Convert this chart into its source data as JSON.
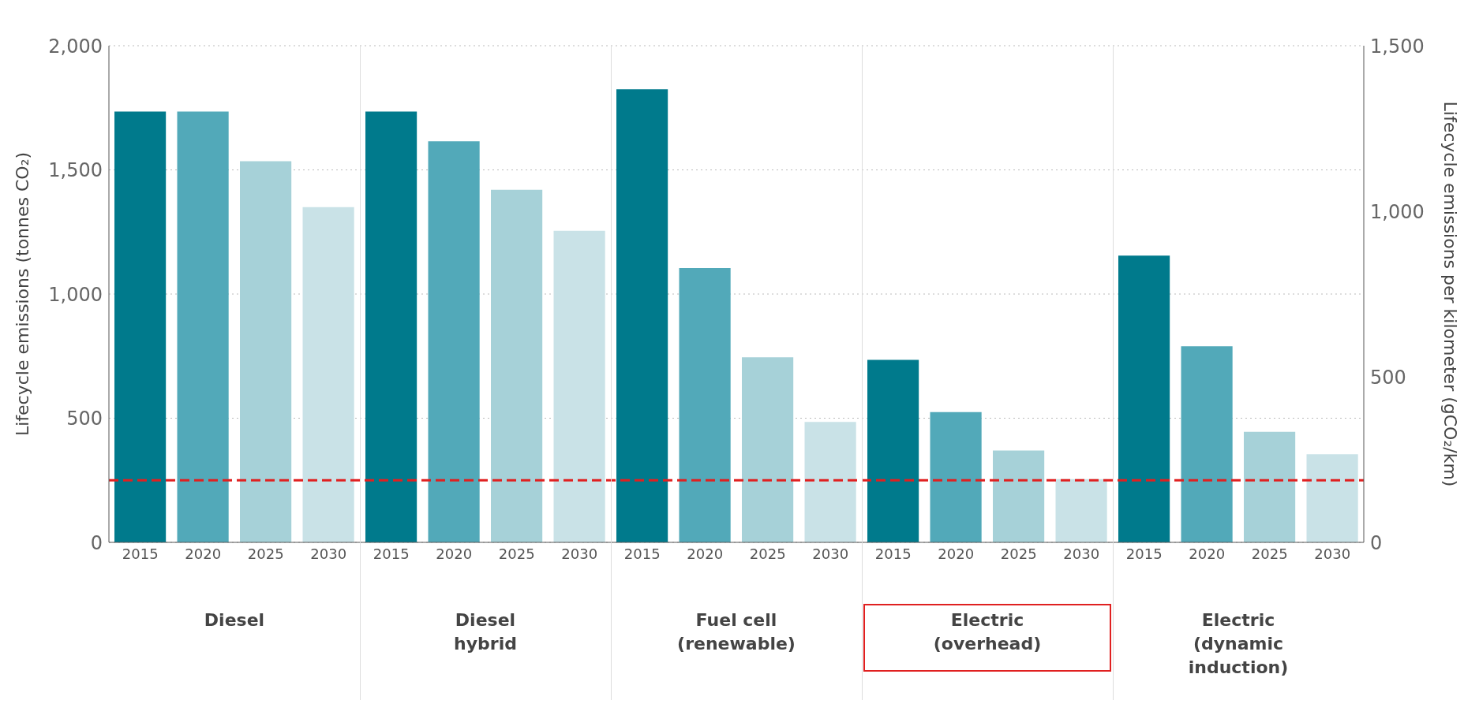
{
  "chart_data": {
    "type": "bar",
    "categories": [
      "2015",
      "2020",
      "2025",
      "2030",
      "2015",
      "2020",
      "2025",
      "2030",
      "2015",
      "2020",
      "2025",
      "2030",
      "2015",
      "2020",
      "2025",
      "2030",
      "2015",
      "2020",
      "2025",
      "2030"
    ],
    "values": [
      1735,
      1735,
      1535,
      1350,
      1735,
      1615,
      1420,
      1255,
      1825,
      1105,
      745,
      485,
      735,
      525,
      370,
      255,
      1155,
      790,
      445,
      355
    ],
    "colors": [
      "#007a8c",
      "#52a9b9",
      "#a6d1d8",
      "#c9e2e7",
      "#007a8c",
      "#52a9b9",
      "#a6d1d8",
      "#c9e2e7",
      "#007a8c",
      "#52a9b9",
      "#a6d1d8",
      "#c9e2e7",
      "#007a8c",
      "#52a9b9",
      "#a6d1d8",
      "#c9e2e7",
      "#007a8c",
      "#52a9b9",
      "#a6d1d8",
      "#c9e2e7"
    ],
    "ylabel": "Lifecycle emissions (tonnes CO₂)",
    "y2label": "Lifecycle  emissions per kilometer (gCO₂/km)",
    "ylim": [
      0,
      2000
    ],
    "yticks": [
      0,
      {
        "value": 500,
        "label": "500"
      },
      {
        "value": 1000,
        "label": "1,000"
      },
      {
        "value": 1500,
        "label": "1,500"
      },
      {
        "value": 2000,
        "label": "2,000"
      }
    ],
    "y2lim": [
      0,
      1500
    ],
    "y2ticks": [
      0,
      500,
      {
        "value": 1000,
        "label": "1,000"
      },
      {
        "value": 1500,
        "label": "1,500"
      }
    ],
    "grid": "y",
    "ref_lines": [
      {
        "axis": "y",
        "value": 250,
        "color": "#e02020",
        "line_style": "dashed"
      }
    ],
    "annotations": [
      "Diesel",
      "Diesel\nhybrid",
      "Fuel cell\n(renewable)",
      "Electric\n(overhead)",
      "Electric\n(dynamic\ninduction)"
    ]
  }
}
